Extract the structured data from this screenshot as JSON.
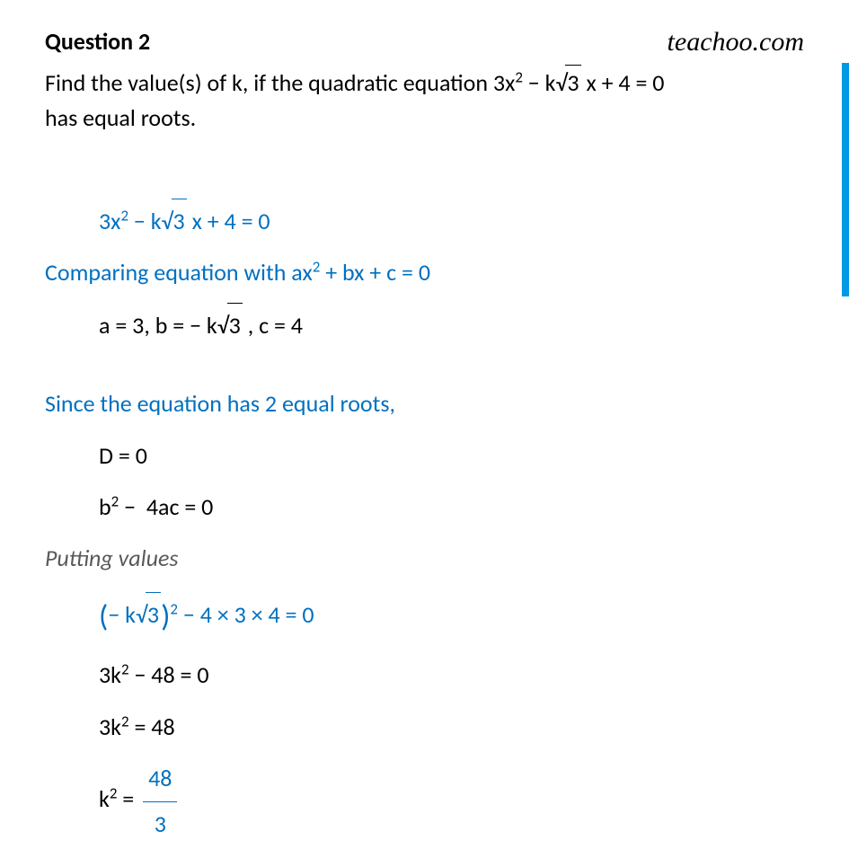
{
  "header": {
    "question_label": "Question 2",
    "brand": "teachoo.com"
  },
  "question": {
    "line1": "Find the value(s) of k, if the quadratic equation 3x² − k√3 x + 4 = 0",
    "line2": "has equal roots."
  },
  "solution": {
    "eq1_prefix": "3x",
    "eq1_sup": "2",
    "eq1_mid": " − k",
    "eq1_sqrt": "3",
    "eq1_suffix": " x + 4 = 0",
    "compare_text": "Comparing equation with ax² + bx + c = 0",
    "coeffs_prefix": "a = 3, b = − k",
    "coeffs_sqrt": "3",
    "coeffs_suffix": " , c = 4",
    "equal_roots": "Since the equation has 2 equal roots,",
    "d_zero": "D = 0",
    "discriminant": "b² −  4ac = 0",
    "putting": "Putting values",
    "step1_lparen": "(",
    "step1_minus": "−",
    "step1_k": " k",
    "step1_sqrt": "3",
    "step1_rparen": ")",
    "step1_sup": "2",
    "step1_rest": " − 4 × 3 × 4 = 0",
    "step2": "3k² − 48 = 0",
    "step3": "3k² = 48",
    "step4_prefix": "k² = ",
    "step4_num": "48",
    "step4_den": "3"
  },
  "styling": {
    "black": "#000000",
    "blue": "#0070c0",
    "grey": "#595959",
    "sidebar_color": "#0099e6",
    "background": "#ffffff",
    "body_fontsize": 26,
    "title_fontsize": 26,
    "brand_fontsize": 30
  }
}
